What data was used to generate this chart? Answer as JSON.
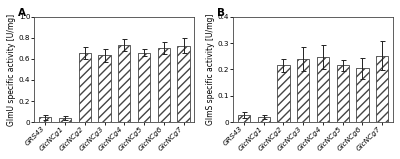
{
  "categories": [
    "GRS43",
    "GlcNCg1",
    "GlcNCg2",
    "GlcNCg3",
    "GlcNCg4",
    "GlcNCg5",
    "GlcNCg6",
    "GlcNCg7"
  ],
  "panel_A": {
    "label": "A",
    "ylabel": "GlmU specific activity [U/mg]",
    "ylim": [
      0,
      1.0
    ],
    "yticks": [
      0.0,
      0.2,
      0.4,
      0.6,
      0.8,
      1.0
    ],
    "yticklabels": [
      "0",
      "0.2",
      "0.4",
      "0.6",
      "0.8",
      "1.0"
    ],
    "values": [
      0.045,
      0.038,
      0.655,
      0.635,
      0.73,
      0.66,
      0.705,
      0.725
    ],
    "errors": [
      0.02,
      0.018,
      0.055,
      0.06,
      0.055,
      0.03,
      0.055,
      0.07
    ]
  },
  "panel_B": {
    "label": "B",
    "ylabel": "GlmS specific activity [U/mg]",
    "ylim": [
      0,
      0.4
    ],
    "yticks": [
      0.0,
      0.1,
      0.2,
      0.3,
      0.4
    ],
    "yticklabels": [
      "0",
      "0.1",
      "0.2",
      "0.3",
      "0.4"
    ],
    "values": [
      0.028,
      0.02,
      0.215,
      0.24,
      0.248,
      0.215,
      0.205,
      0.252
    ],
    "errors": [
      0.012,
      0.008,
      0.025,
      0.045,
      0.045,
      0.02,
      0.04,
      0.055
    ]
  },
  "bar_facecolor": "#ffffff",
  "bar_edgecolor": "#444444",
  "hatch": "////",
  "hatch_color": "#888888",
  "error_color": "#222222",
  "background_color": "#ffffff",
  "tick_fontsize": 5.2,
  "ylabel_fontsize": 5.5,
  "panel_label_fontsize": 7.5,
  "bar_linewidth": 0.6,
  "bar_width": 0.62
}
